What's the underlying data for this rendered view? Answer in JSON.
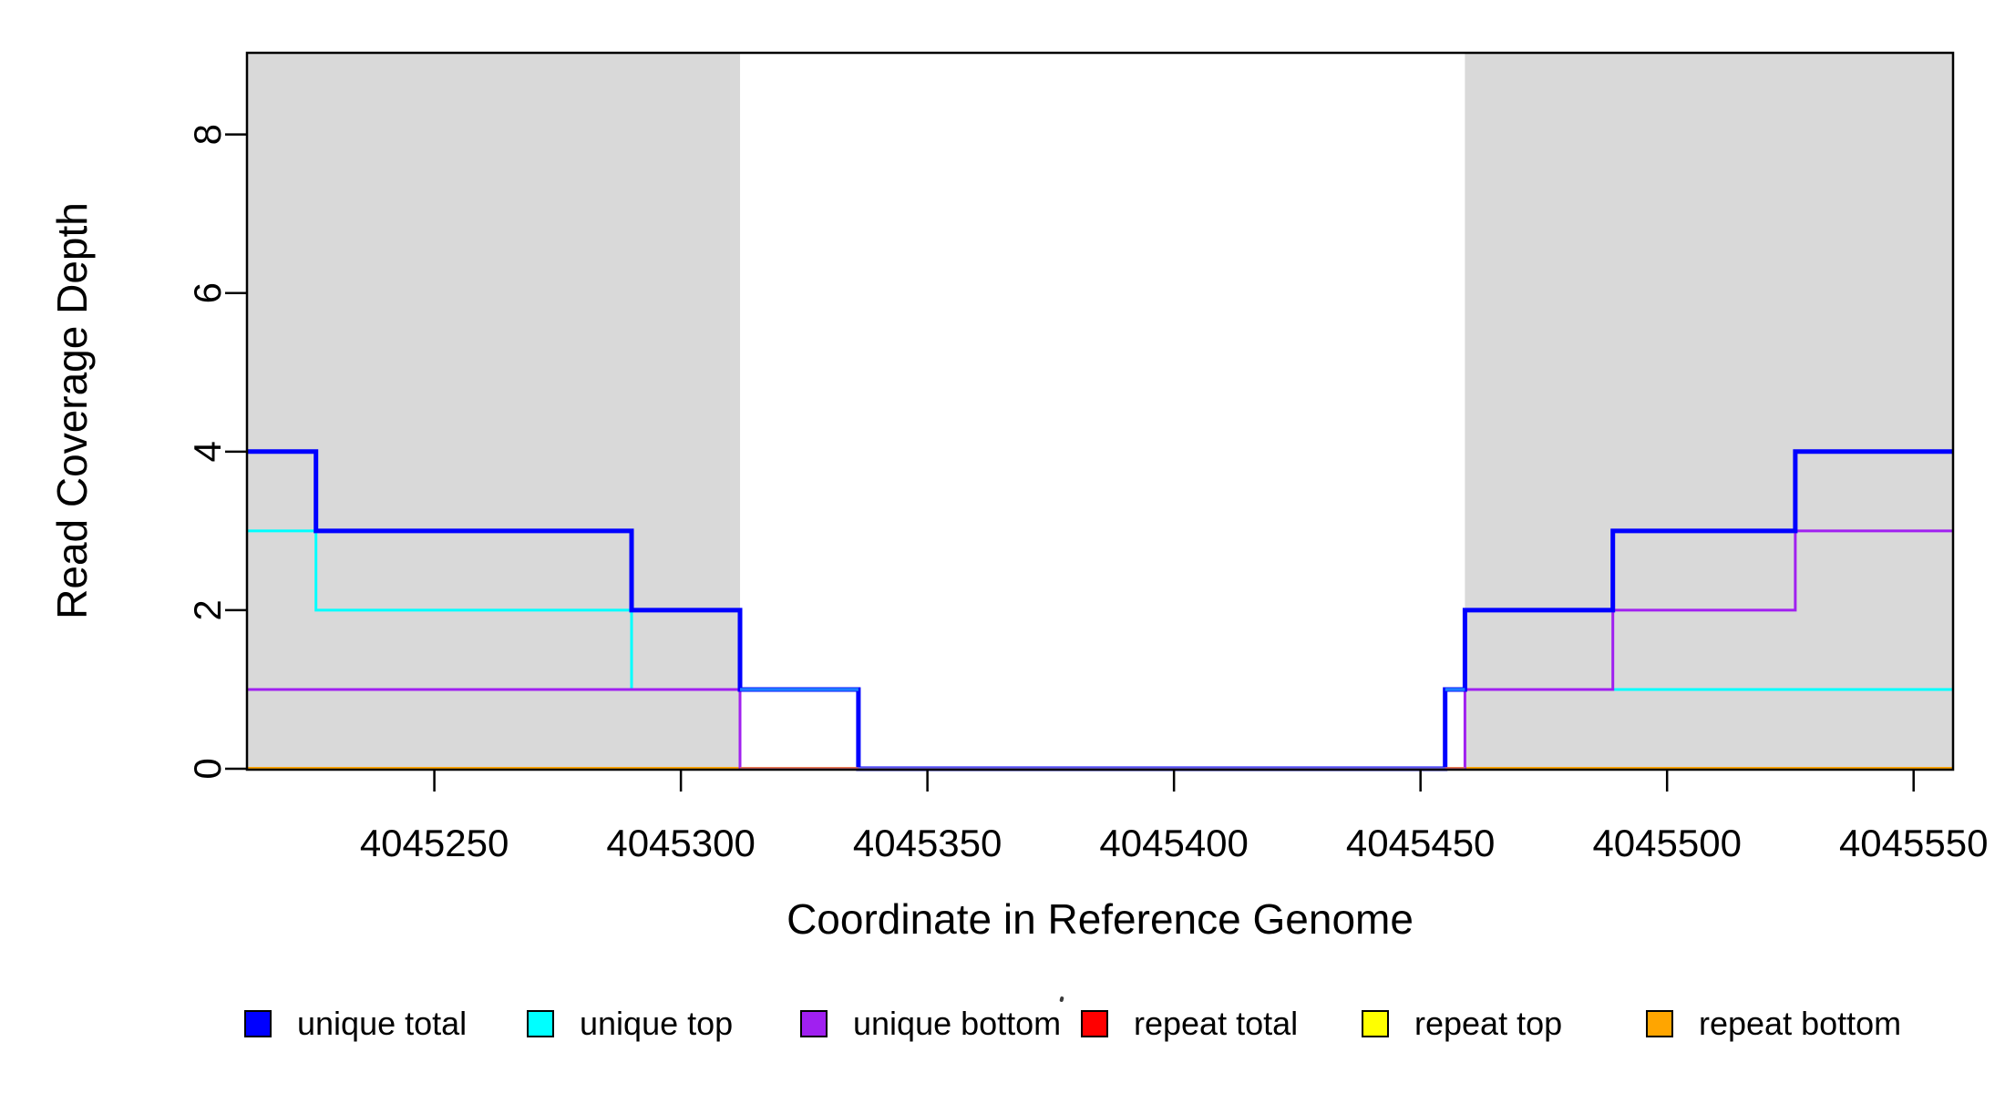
{
  "chart_data": {
    "type": "line",
    "subtype": "step",
    "title": "",
    "xlabel": "Coordinate in Reference Genome",
    "ylabel": "Read Coverage Depth",
    "xlim": [
      4045212,
      4045558
    ],
    "ylim": [
      0,
      9.03
    ],
    "x_ticks": [
      4045250,
      4045300,
      4045350,
      4045400,
      4045450,
      4045500,
      4045550
    ],
    "y_ticks": [
      0,
      2,
      4,
      6,
      8
    ],
    "grid": false,
    "legend_position": "bottom",
    "shaded_region_color": "#D9D9D9",
    "shaded_regions": [
      {
        "x0": 4045212,
        "x1": 4045312
      },
      {
        "x0": 4045459,
        "x1": 4045558
      }
    ],
    "series": [
      {
        "name": "unique total",
        "color": "#0000FF",
        "steps": [
          [
            4045212,
            4
          ],
          [
            4045226,
            3
          ],
          [
            4045290,
            2
          ],
          [
            4045312,
            1
          ],
          [
            4045336,
            0
          ],
          [
            4045455,
            1
          ],
          [
            4045459,
            2
          ],
          [
            4045489,
            3
          ],
          [
            4045526,
            4
          ],
          [
            4045558,
            4
          ]
        ]
      },
      {
        "name": "unique top",
        "color": "#00FFFF",
        "steps": [
          [
            4045212,
            3
          ],
          [
            4045226,
            2
          ],
          [
            4045290,
            1
          ],
          [
            4045336,
            0
          ],
          [
            4045455,
            1
          ],
          [
            4045558,
            1
          ]
        ]
      },
      {
        "name": "unique bottom",
        "color": "#A020F0",
        "steps": [
          [
            4045212,
            1
          ],
          [
            4045312,
            0
          ],
          [
            4045459,
            1
          ],
          [
            4045489,
            2
          ],
          [
            4045526,
            3
          ],
          [
            4045558,
            3
          ]
        ]
      },
      {
        "name": "repeat total",
        "color": "#FF0000",
        "steps": [
          [
            4045212,
            0
          ],
          [
            4045558,
            0
          ]
        ]
      },
      {
        "name": "repeat top",
        "color": "#FFFF00",
        "steps": [
          [
            4045212,
            0
          ],
          [
            4045558,
            0
          ]
        ]
      },
      {
        "name": "repeat bottom",
        "color": "#FFA500",
        "steps": [
          [
            4045212,
            0
          ],
          [
            4045558,
            0
          ]
        ]
      }
    ],
    "overlap_overlays": [
      {
        "y": 0,
        "x0": 4045312,
        "x1": 4045336,
        "color": "#E06A6A"
      },
      {
        "y": 0,
        "x0": 4045336,
        "x1": 4045455,
        "color": "#7668E0"
      },
      {
        "y": 0,
        "x0": 4045455,
        "x1": 4045459,
        "color": "#E06A6A"
      },
      {
        "y": 1,
        "x0": 4045312,
        "x1": 4045336,
        "color": "#1E7EFF"
      },
      {
        "y": 1,
        "x0": 4045455,
        "x1": 4045459,
        "color": "#1E7EFF"
      }
    ],
    "legend": [
      {
        "label": "unique total",
        "color": "#0000FF"
      },
      {
        "label": "unique top",
        "color": "#00FFFF"
      },
      {
        "label": "unique bottom",
        "color": "#A020F0"
      },
      {
        "label": "repeat total",
        "color": "#FF0000"
      },
      {
        "label": "repeat top",
        "color": "#FFFF00"
      },
      {
        "label": "repeat bottom",
        "color": "#FFA500"
      }
    ]
  }
}
